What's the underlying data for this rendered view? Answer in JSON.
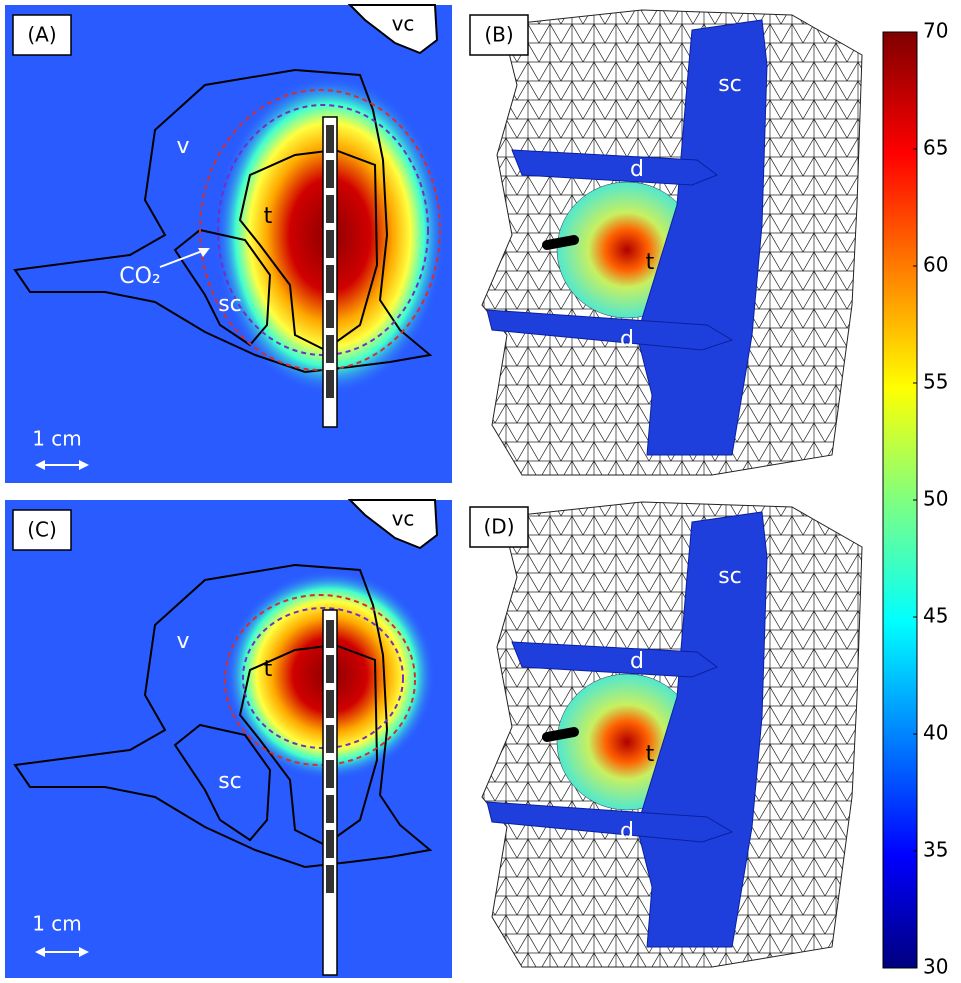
{
  "panels": [
    {
      "label": "(A)",
      "labels": {
        "vc": "vc",
        "v": "v",
        "t": "t",
        "sc": "sc",
        "co2": "CO₂"
      },
      "scale": "1 cm"
    },
    {
      "label": "(B)",
      "labels": {
        "sc": "sc",
        "d_top": "d",
        "t": "t",
        "d_bottom": "d"
      }
    },
    {
      "label": "(C)",
      "labels": {
        "vc": "vc",
        "v": "v",
        "t": "t",
        "sc": "sc"
      },
      "scale": "1 cm"
    },
    {
      "label": "(D)",
      "labels": {
        "sc": "sc",
        "d_top": "d",
        "t": "t",
        "d_bottom": "d"
      }
    }
  ],
  "colorbar": {
    "range": [
      30,
      70
    ],
    "ticks": [
      30,
      35,
      40,
      45,
      50,
      55,
      60,
      65,
      70
    ]
  }
}
